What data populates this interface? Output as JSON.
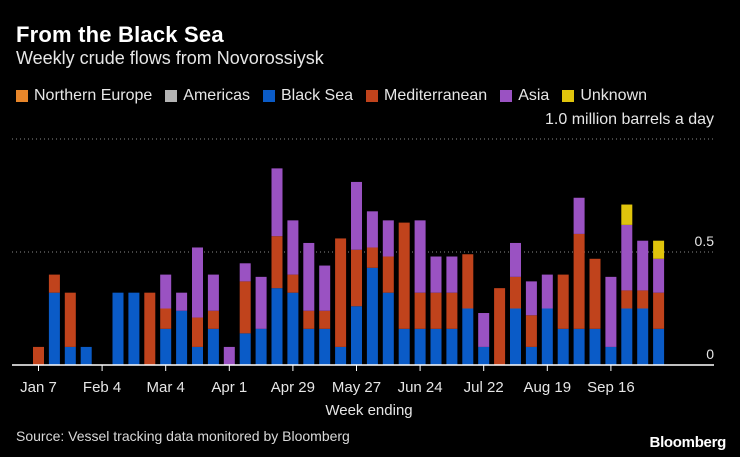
{
  "header": {
    "title": "From the Black Sea",
    "subtitle": "Weekly crude flows from Novorossiysk"
  },
  "legend": [
    {
      "label": "Northern Europe",
      "color": "#e8862a"
    },
    {
      "label": "Americas",
      "color": "#b4b4b4"
    },
    {
      "label": "Black Sea",
      "color": "#0a5bc7"
    },
    {
      "label": "Mediterranean",
      "color": "#c0431c"
    },
    {
      "label": "Asia",
      "color": "#9a52c2"
    },
    {
      "label": "Unknown",
      "color": "#e0c40c"
    }
  ],
  "unit_note": "1.0 million barrels a day",
  "footer": {
    "source": "Source: Vessel tracking data monitored by Bloomberg",
    "brand": "Bloomberg"
  },
  "chart_data": {
    "type": "bar",
    "stacked": true,
    "xlabel": "Week ending",
    "ylim": [
      0,
      1.0
    ],
    "y_ticks": [
      "0",
      "0.5"
    ],
    "x_tick_labels": [
      "Jan 7",
      "Feb 4",
      "Mar 4",
      "Apr 1",
      "Apr 29",
      "May 27",
      "Jun 24",
      "Jul 22",
      "Aug 19",
      "Sep 16"
    ],
    "x_tick_week_index": [
      0,
      4,
      8,
      12,
      16,
      20,
      24,
      28,
      32,
      36
    ],
    "grid": true,
    "y_axis_side": "right",
    "series": [
      {
        "name": "Black Sea",
        "color": "#0a5bc7",
        "values": [
          0,
          0.32,
          0.08,
          0.08,
          0,
          0.32,
          0.32,
          0,
          0.16,
          0.24,
          0.08,
          0.16,
          0,
          0.14,
          0.16,
          0.34,
          0.32,
          0.16,
          0.16,
          0.08,
          0.26,
          0.43,
          0.32,
          0.16,
          0.16,
          0.16,
          0.16,
          0.25,
          0.08,
          0,
          0.25,
          0.08,
          0.25,
          0.16,
          0.16,
          0.16,
          0.08,
          0.25,
          0.25,
          0.16
        ]
      },
      {
        "name": "Mediterranean",
        "color": "#c0431c",
        "values": [
          0.08,
          0.08,
          0.24,
          0,
          0,
          0,
          0,
          0.32,
          0.09,
          0,
          0.13,
          0.08,
          0,
          0.23,
          0,
          0.23,
          0.08,
          0.08,
          0.08,
          0.48,
          0.25,
          0.09,
          0.16,
          0.47,
          0.16,
          0.16,
          0.16,
          0.24,
          0,
          0.34,
          0.14,
          0.14,
          0,
          0.24,
          0.42,
          0.31,
          0,
          0.08,
          0.08,
          0.16
        ]
      },
      {
        "name": "Asia",
        "color": "#9a52c2",
        "values": [
          0,
          0,
          0,
          0,
          0,
          0,
          0,
          0,
          0.15,
          0.08,
          0.31,
          0.16,
          0.08,
          0.08,
          0.23,
          0.3,
          0.24,
          0.3,
          0.2,
          0,
          0.3,
          0.16,
          0.16,
          0,
          0.32,
          0.16,
          0.16,
          0,
          0.15,
          0,
          0.15,
          0.15,
          0.15,
          0,
          0.16,
          0,
          0.31,
          0.29,
          0.22,
          0.15
        ]
      },
      {
        "name": "Unknown",
        "color": "#e0c40c",
        "values": [
          0,
          0,
          0,
          0,
          0,
          0,
          0,
          0,
          0,
          0,
          0,
          0,
          0,
          0,
          0,
          0,
          0,
          0,
          0,
          0,
          0,
          0,
          0,
          0,
          0,
          0,
          0,
          0,
          0,
          0,
          0,
          0,
          0,
          0,
          0,
          0,
          0,
          0.09,
          0,
          0.08
        ]
      }
    ]
  }
}
